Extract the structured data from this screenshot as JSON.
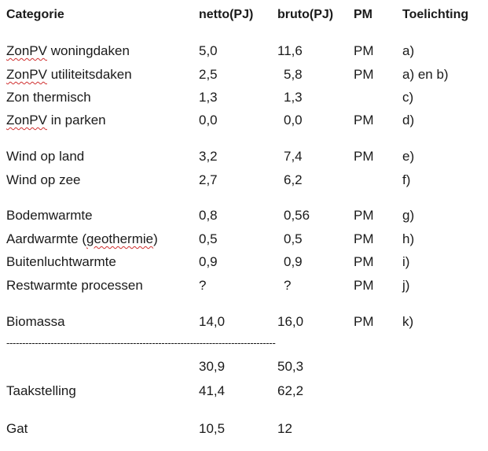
{
  "header": {
    "categorie": "Categorie",
    "netto": "netto(PJ)",
    "bruto": "bruto(PJ)",
    "pm": "PM",
    "toelichting": "Toelichting"
  },
  "rows": [
    {
      "cat_a": "ZonPV",
      "cat_b": " woningdaken",
      "netto": "5,0",
      "bruto": "11,6",
      "pm": "PM",
      "toel": "a)"
    },
    {
      "cat_a": "ZonPV",
      "cat_b": " utiliteitsdaken",
      "netto": "2,5",
      "bruto": "5,8",
      "pm": "PM",
      "toel": "a) en b)"
    },
    {
      "cat": "Zon thermisch",
      "netto": "1,3",
      "bruto": "1,3",
      "pm": "",
      "toel": "c)"
    },
    {
      "cat_a": "ZonPV",
      "cat_b": " in parken",
      "netto": "0,0",
      "bruto": "0,0",
      "pm": "PM",
      "toel": "d)"
    },
    {
      "cat": "Wind op land",
      "netto": "3,2",
      "bruto": "7,4",
      "pm": "PM",
      "toel": "e)"
    },
    {
      "cat": "Wind op zee",
      "netto": "2,7",
      "bruto": "6,2",
      "pm": "",
      "toel": "f)"
    },
    {
      "cat": "Bodemwarmte",
      "netto": "0,8",
      "bruto": "0,56",
      "pm": "PM",
      "toel": "g)"
    },
    {
      "cat_a": "Aardwarmte (",
      "cat_b": "geothermie",
      "cat_c": ")",
      "netto": "0,5",
      "bruto": "0,5",
      "pm": "PM",
      "toel": "h)"
    },
    {
      "cat": "Buitenluchtwarmte",
      "netto": "0,9",
      "bruto": "0,9",
      "pm": "PM",
      "toel": "i)"
    },
    {
      "cat": "Restwarmte processen",
      "netto": "?",
      "bruto": "?",
      "pm": "PM",
      "toel": "j)"
    },
    {
      "cat": "Biomassa",
      "netto": "14,0",
      "bruto": "16,0",
      "pm": "PM",
      "toel": "k)"
    }
  ],
  "divider": "-------------------------------------------------------------------------------------",
  "totals": {
    "netto": "30,9",
    "bruto": "50,3"
  },
  "taakstelling": {
    "label": "Taakstelling",
    "netto": "41,4",
    "bruto": "62,2"
  },
  "gat": {
    "label": "Gat",
    "netto": "10,5",
    "bruto": "12"
  }
}
